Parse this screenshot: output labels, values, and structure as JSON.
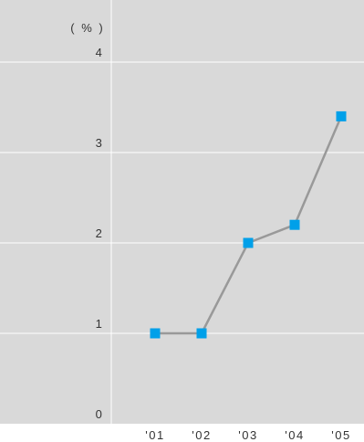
{
  "chart_data": {
    "type": "line",
    "title": "",
    "xlabel": "",
    "ylabel": "",
    "y_unit": "( % )",
    "categories": [
      "'01",
      "'02",
      "'03",
      "'04",
      "'05"
    ],
    "x_tick_labels": [
      "'01",
      "'02",
      "'03",
      "'04",
      "'05"
    ],
    "y_ticks": [
      "0",
      "1",
      "2",
      "3",
      "4"
    ],
    "ylim": [
      0,
      4.5
    ],
    "grid": true,
    "series": [
      {
        "values": [
          1.0,
          1.0,
          2.0,
          2.2,
          3.4
        ]
      }
    ],
    "colors": {
      "plot_background": "#d9d9d9",
      "gridline": "#ffffff",
      "line": "#999999",
      "marker": "#00a0e9"
    }
  }
}
